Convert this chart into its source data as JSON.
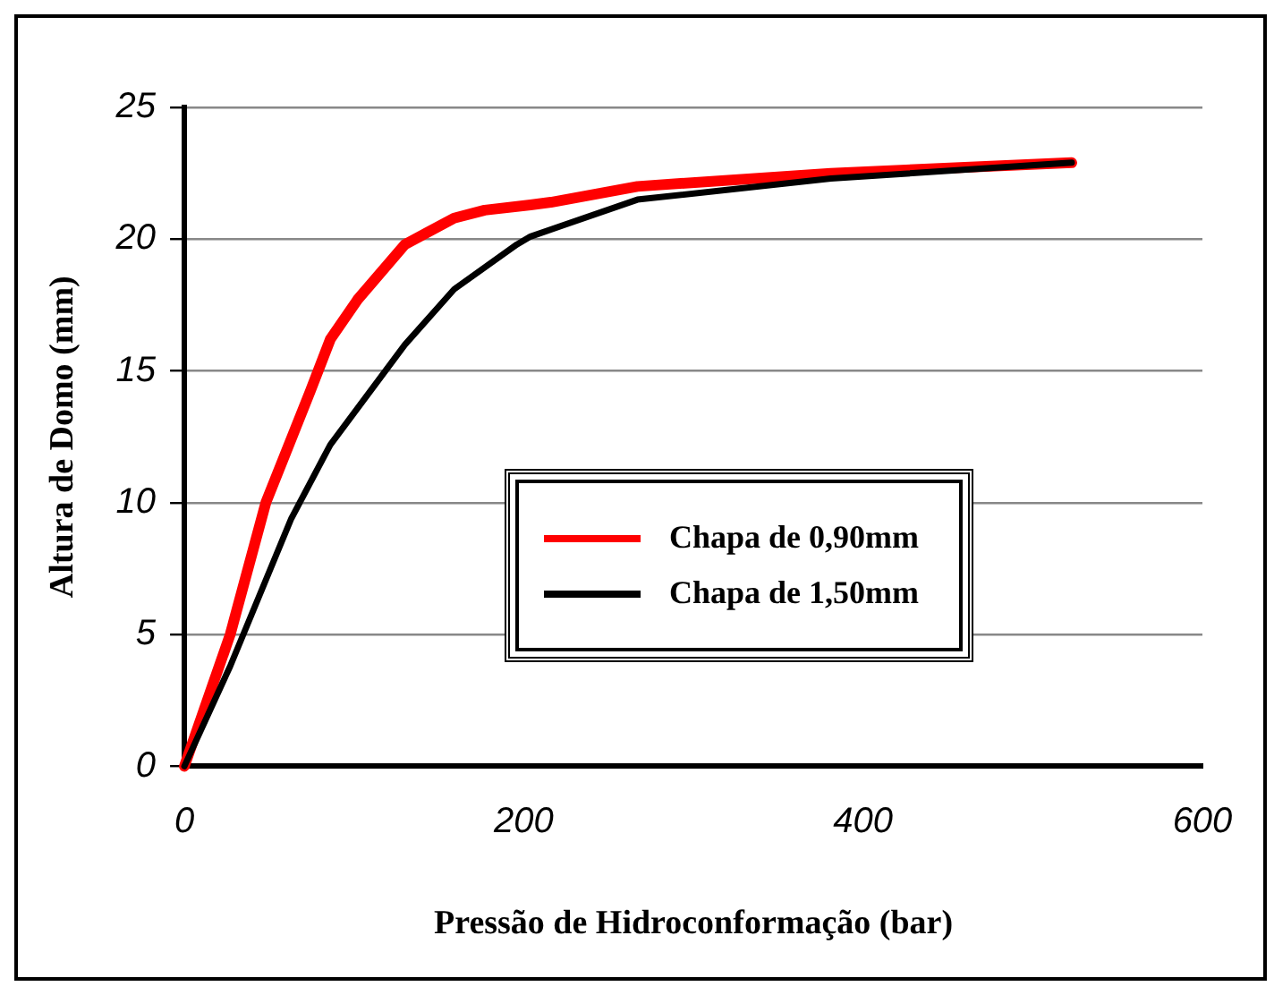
{
  "chart_data": {
    "type": "line",
    "xlabel": "Pressão de Hidroconformação (bar)",
    "ylabel": "Altura de Domo (mm)",
    "xlim": [
      0,
      600
    ],
    "xticks": [
      0,
      200,
      400,
      600
    ],
    "ylim": [
      0,
      25
    ],
    "yticks": [
      0,
      5,
      10,
      15,
      20,
      25
    ],
    "grid": "y",
    "legend": "center",
    "marker": "none",
    "line_style": "solid",
    "series": [
      {
        "name": "Chapa de 0,90mm",
        "color": "#ff0000",
        "x": [
          0,
          27,
          48,
          74,
          86,
          102,
          130,
          159,
          177,
          204,
          216,
          267,
          381,
          523
        ],
        "values": [
          0,
          5.0,
          10.0,
          14.2,
          16.2,
          17.7,
          19.8,
          20.8,
          21.1,
          21.3,
          21.4,
          22.0,
          22.5,
          22.9
        ]
      },
      {
        "name": "Chapa de 1,50mm",
        "color": "#000000",
        "x": [
          0,
          27,
          63,
          86,
          130,
          159,
          196,
          204,
          267,
          381,
          523
        ],
        "values": [
          0,
          3.8,
          9.4,
          12.2,
          16.0,
          18.1,
          19.8,
          20.1,
          21.5,
          22.3,
          22.9
        ]
      }
    ]
  }
}
